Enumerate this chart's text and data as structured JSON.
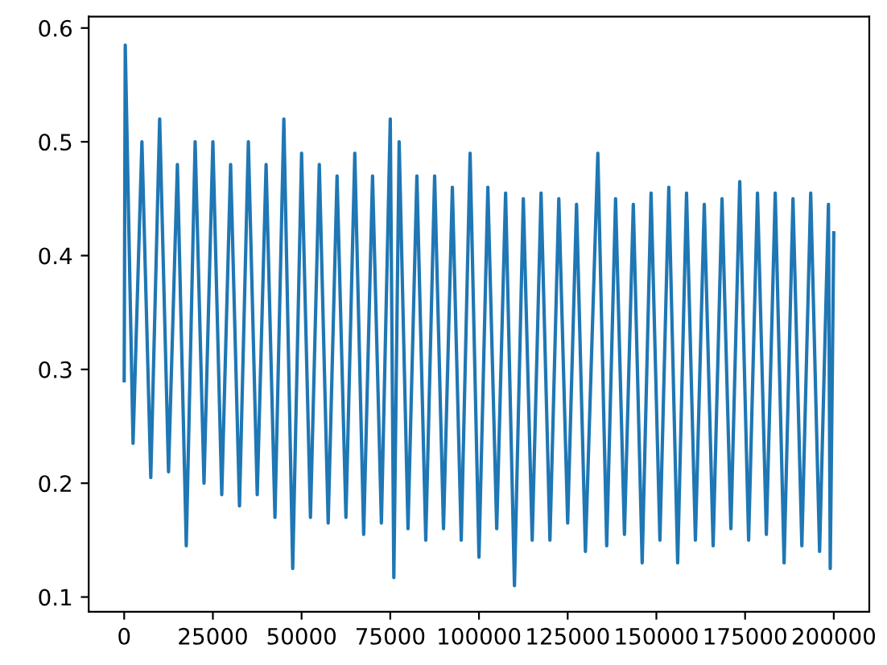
{
  "chart_data": {
    "type": "line",
    "x": [
      0,
      300,
      2500,
      5000,
      7500,
      10000,
      12500,
      15000,
      17500,
      20000,
      22500,
      25000,
      27500,
      30000,
      32500,
      35000,
      37500,
      40000,
      42500,
      45000,
      47500,
      50000,
      52500,
      55000,
      57500,
      60000,
      62500,
      65000,
      67500,
      70000,
      72500,
      75000,
      76000,
      77500,
      80000,
      82500,
      85000,
      87500,
      90000,
      92500,
      95000,
      97500,
      100000,
      102500,
      105000,
      107500,
      110000,
      112500,
      115000,
      117500,
      120000,
      122500,
      125000,
      127500,
      130000,
      133500,
      136000,
      138500,
      141000,
      143500,
      146000,
      148500,
      151000,
      153500,
      156000,
      158500,
      161000,
      163500,
      166000,
      168500,
      171000,
      173500,
      176000,
      178500,
      181000,
      183500,
      186000,
      188500,
      191000,
      193500,
      196000,
      198500,
      199000,
      200000
    ],
    "series": [
      {
        "color": "#1f77b4",
        "values": [
          0.29,
          0.585,
          0.235,
          0.5,
          0.205,
          0.52,
          0.21,
          0.48,
          0.145,
          0.5,
          0.2,
          0.5,
          0.19,
          0.48,
          0.18,
          0.5,
          0.19,
          0.48,
          0.17,
          0.52,
          0.125,
          0.49,
          0.17,
          0.48,
          0.165,
          0.47,
          0.17,
          0.49,
          0.155,
          0.47,
          0.165,
          0.52,
          0.117,
          0.5,
          0.16,
          0.47,
          0.15,
          0.47,
          0.16,
          0.46,
          0.15,
          0.49,
          0.135,
          0.46,
          0.16,
          0.455,
          0.11,
          0.45,
          0.15,
          0.455,
          0.15,
          0.45,
          0.165,
          0.445,
          0.14,
          0.49,
          0.145,
          0.45,
          0.155,
          0.445,
          0.13,
          0.455,
          0.15,
          0.46,
          0.13,
          0.455,
          0.15,
          0.445,
          0.145,
          0.45,
          0.16,
          0.465,
          0.15,
          0.455,
          0.155,
          0.455,
          0.13,
          0.45,
          0.145,
          0.455,
          0.14,
          0.445,
          0.125,
          0.42
        ]
      }
    ],
    "xlim": [
      -10000,
      210000
    ],
    "xticks": [
      0,
      25000,
      50000,
      75000,
      100000,
      125000,
      150000,
      175000,
      200000
    ],
    "ylim": [
      0.087,
      0.61
    ],
    "yticks": [
      0.1,
      0.2,
      0.3,
      0.4,
      0.5,
      0.6
    ],
    "grid": false,
    "legend": false
  }
}
